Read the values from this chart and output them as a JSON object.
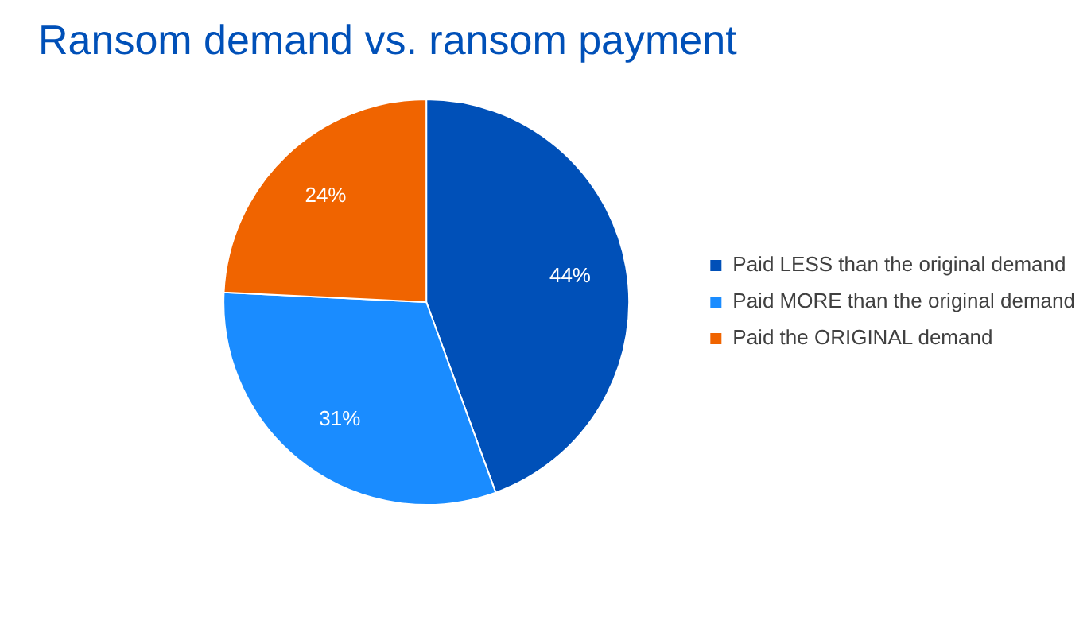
{
  "chart_data": {
    "type": "pie",
    "title": "Ransom demand vs. ransom payment",
    "categories": [
      "Paid LESS than the original demand",
      "Paid MORE than the original demand",
      "Paid the ORIGINAL demand"
    ],
    "values": [
      44,
      31,
      24
    ],
    "colors": [
      "#0050b8",
      "#1a8cff",
      "#f06400"
    ],
    "value_labels": [
      "44%",
      "31%",
      "24%"
    ],
    "legend": "right"
  }
}
